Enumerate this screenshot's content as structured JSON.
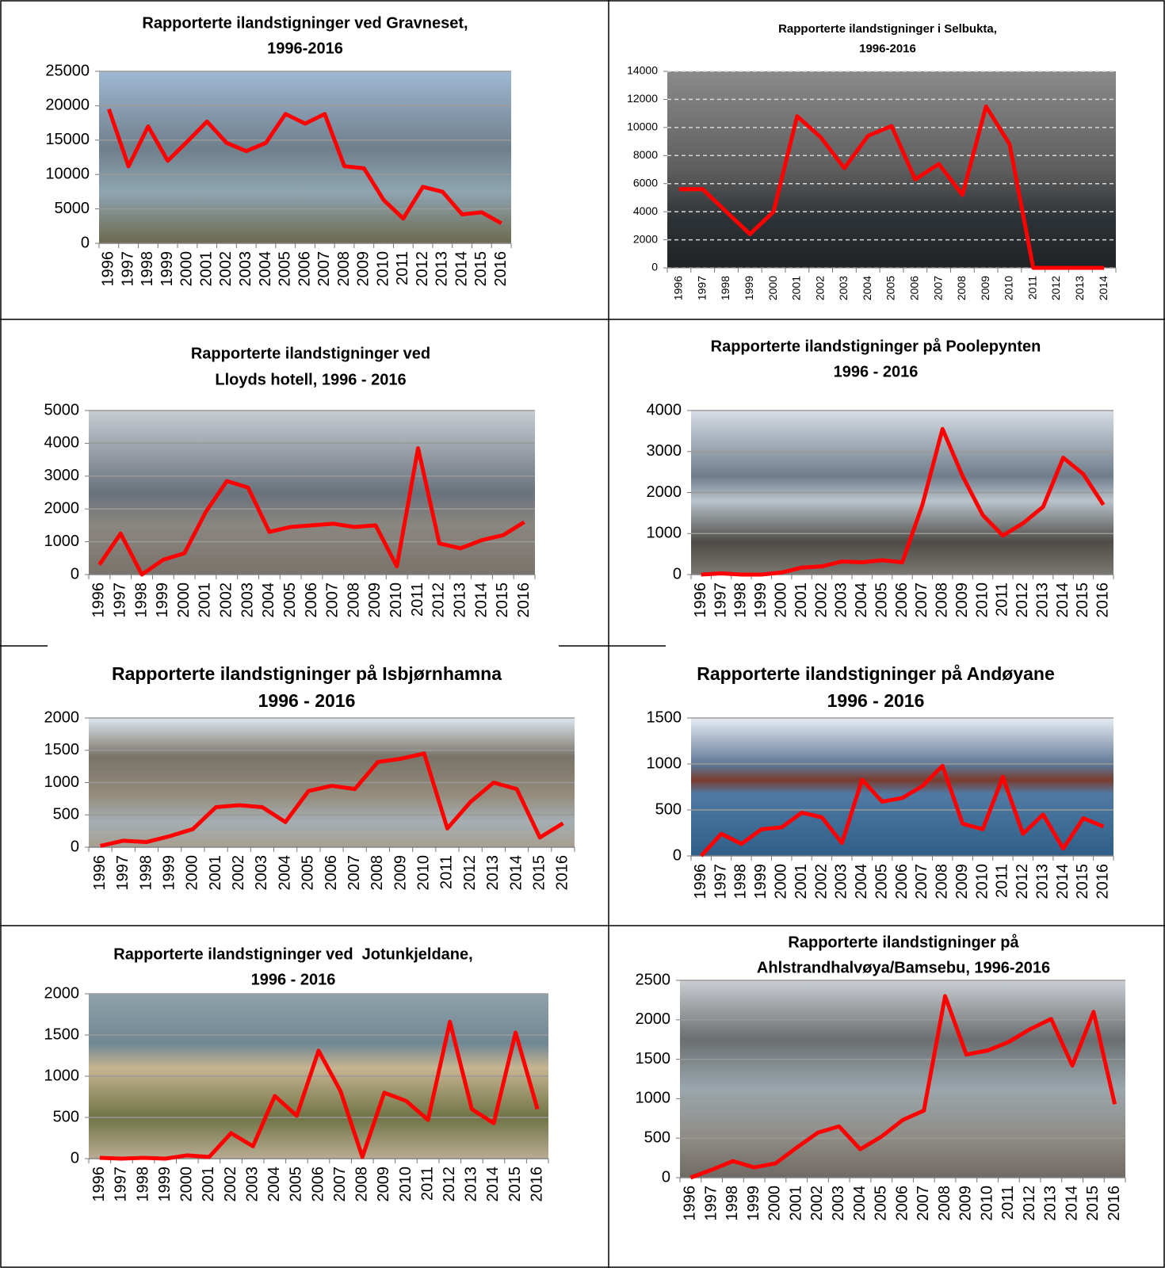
{
  "chart_data": [
    {
      "type": "line",
      "title": [
        "Rapporterte ilandstigninger ved Gravneset,",
        "1996-2016"
      ],
      "categories": [
        "1996",
        "1997",
        "1998",
        "1999",
        "2000",
        "2001",
        "2002",
        "2003",
        "2004",
        "2005",
        "2006",
        "2007",
        "2008",
        "2009",
        "2010",
        "2011",
        "2012",
        "2013",
        "2014",
        "2015",
        "2016"
      ],
      "series": [
        {
          "color": "#ff0000",
          "values": [
            19500,
            11200,
            17000,
            12000,
            14800,
            17700,
            14600,
            13400,
            14600,
            18800,
            17400,
            18800,
            11200,
            10900,
            6300,
            3600,
            8200,
            7500,
            4200,
            4500,
            2900
          ]
        }
      ],
      "ylim": [
        0,
        25000
      ],
      "yticks": [
        0,
        5000,
        10000,
        15000,
        20000,
        25000
      ],
      "grid": true
    },
    {
      "type": "line",
      "title": [
        "Rapporterte ilandstigninger i Selbukta,",
        "1996-2016"
      ],
      "categories": [
        "1996",
        "1997",
        "1998",
        "1999",
        "2000",
        "2001",
        "2002",
        "2003",
        "2004",
        "2005",
        "2006",
        "2007",
        "2008",
        "2009",
        "2010",
        "2011",
        "2012",
        "2013",
        "2014"
      ],
      "series": [
        {
          "color": "#ff0000",
          "values": [
            5600,
            5600,
            4000,
            2400,
            4000,
            10800,
            9300,
            7100,
            9400,
            10100,
            6300,
            7400,
            5200,
            11500,
            8800,
            0,
            0,
            0,
            0
          ]
        }
      ],
      "ylim": [
        0,
        14000
      ],
      "yticks": [
        0,
        2000,
        4000,
        6000,
        8000,
        10000,
        12000,
        14000
      ],
      "grid": true,
      "grid_style": "dashed"
    },
    {
      "type": "line",
      "title": [
        "Rapporterte ilandstigninger ved",
        "Lloyds hotell, 1996 - 2016"
      ],
      "categories": [
        "1996",
        "1997",
        "1998",
        "1999",
        "2000",
        "2001",
        "2002",
        "2003",
        "2004",
        "2005",
        "2006",
        "2007",
        "2008",
        "2009",
        "2010",
        "2011",
        "2012",
        "2013",
        "2014",
        "2015",
        "2016"
      ],
      "series": [
        {
          "color": "#ff0000",
          "values": [
            300,
            1250,
            0,
            450,
            650,
            1900,
            2850,
            2650,
            1300,
            1450,
            1500,
            1550,
            1450,
            1500,
            250,
            3850,
            950,
            800,
            1050,
            1200,
            1600
          ]
        }
      ],
      "ylim": [
        0,
        5000
      ],
      "yticks": [
        0,
        1000,
        2000,
        3000,
        4000,
        5000
      ],
      "grid": true
    },
    {
      "type": "line",
      "title": [
        "Rapporterte ilandstigninger på Poolepynten",
        "1996 - 2016"
      ],
      "categories": [
        "1996",
        "1997",
        "1998",
        "1999",
        "2000",
        "2001",
        "2002",
        "2003",
        "2004",
        "2005",
        "2006",
        "2007",
        "2008",
        "2009",
        "2010",
        "2011",
        "2012",
        "2013",
        "2014",
        "2015",
        "2016"
      ],
      "series": [
        {
          "color": "#ff0000",
          "values": [
            0,
            30,
            0,
            0,
            50,
            170,
            200,
            320,
            300,
            350,
            300,
            1700,
            3550,
            2400,
            1450,
            950,
            1250,
            1650,
            2850,
            2450,
            1700
          ]
        }
      ],
      "ylim": [
        0,
        4000
      ],
      "yticks": [
        0,
        1000,
        2000,
        3000,
        4000
      ],
      "grid": true
    },
    {
      "type": "line",
      "title": [
        "Rapporterte ilandstigninger på Isbjørnhamna",
        "1996 - 2016"
      ],
      "categories": [
        "1996",
        "1997",
        "1998",
        "1999",
        "2000",
        "2001",
        "2002",
        "2003",
        "2004",
        "2005",
        "2006",
        "2007",
        "2008",
        "2009",
        "2010",
        "2011",
        "2012",
        "2013",
        "2014",
        "2015",
        "2016"
      ],
      "series": [
        {
          "color": "#ff0000",
          "values": [
            20,
            100,
            80,
            170,
            280,
            620,
            650,
            620,
            390,
            870,
            950,
            900,
            1320,
            1370,
            1450,
            290,
            700,
            1000,
            900,
            150,
            370
          ]
        }
      ],
      "ylim": [
        0,
        2000
      ],
      "yticks": [
        0,
        500,
        1000,
        1500,
        2000
      ],
      "grid": true
    },
    {
      "type": "line",
      "title": [
        "Rapporterte ilandstigninger på Andøyane",
        "1996 - 2016"
      ],
      "categories": [
        "1996",
        "1997",
        "1998",
        "1999",
        "2000",
        "2001",
        "2002",
        "2003",
        "2004",
        "2005",
        "2006",
        "2007",
        "2008",
        "2009",
        "2010",
        "2011",
        "2012",
        "2013",
        "2014",
        "2015",
        "2016"
      ],
      "series": [
        {
          "color": "#ff0000",
          "values": [
            0,
            240,
            130,
            290,
            310,
            470,
            420,
            140,
            830,
            590,
            630,
            760,
            980,
            350,
            290,
            860,
            240,
            450,
            80,
            410,
            320
          ]
        }
      ],
      "ylim": [
        0,
        1500
      ],
      "yticks": [
        0,
        500,
        1000,
        1500
      ],
      "grid": true
    },
    {
      "type": "line",
      "title": [
        "Rapporterte ilandstigninger ved  Jotunkjeldane,",
        "1996 - 2016"
      ],
      "categories": [
        "1996",
        "1997",
        "1998",
        "1999",
        "2000",
        "2001",
        "2002",
        "2003",
        "2004",
        "2005",
        "2006",
        "2007",
        "2008",
        "2009",
        "2010",
        "2011",
        "2012",
        "2013",
        "2014",
        "2015",
        "2016"
      ],
      "series": [
        {
          "color": "#ff0000",
          "values": [
            10,
            0,
            10,
            0,
            40,
            20,
            310,
            150,
            760,
            520,
            1310,
            820,
            20,
            800,
            700,
            470,
            1660,
            600,
            430,
            1530,
            600
          ]
        }
      ],
      "ylim": [
        0,
        2000
      ],
      "yticks": [
        0,
        500,
        1000,
        1500,
        2000
      ],
      "grid": true
    },
    {
      "type": "line",
      "title": [
        "Rapporterte ilandstigninger på",
        "Ahlstrandhalvøya/Bamsebu, 1996-2016"
      ],
      "categories": [
        "1996",
        "1997",
        "1998",
        "1999",
        "2000",
        "2001",
        "2002",
        "2003",
        "2004",
        "2005",
        "2006",
        "2007",
        "2008",
        "2009",
        "2010",
        "2011",
        "2012",
        "2013",
        "2014",
        "2015",
        "2016"
      ],
      "series": [
        {
          "color": "#ff0000",
          "values": [
            0,
            100,
            210,
            130,
            180,
            380,
            570,
            650,
            360,
            520,
            730,
            850,
            2300,
            1560,
            1610,
            1720,
            1880,
            2010,
            1420,
            2100,
            930
          ]
        }
      ],
      "ylim": [
        0,
        2500
      ],
      "yticks": [
        0,
        500,
        1000,
        1500,
        2000,
        2500
      ],
      "grid": true
    }
  ]
}
